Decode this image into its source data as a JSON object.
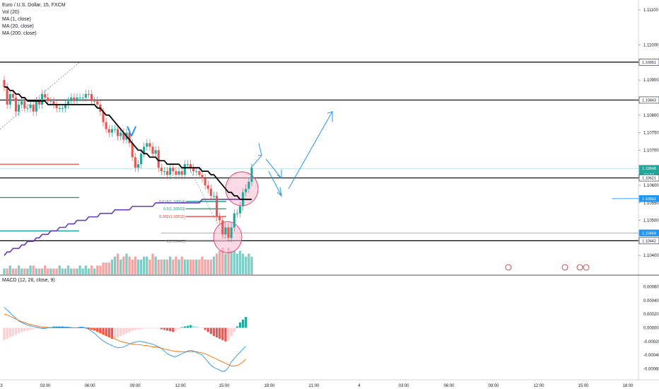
{
  "legend": {
    "symbol": "Euro / U.S. Dollar, 15, FXCM",
    "vol": "Vol (20)",
    "ma1": "MA (1, close)",
    "ma2": "MA (20, close)",
    "ma3": "MA (200, close)",
    "macd": "MACD (12, 26, close, 9)"
  },
  "colors": {
    "bull": "#26a69a",
    "bear": "#ef5350",
    "vol_bull": "#80cbc4",
    "vol_bear": "#f5a3a3",
    "ma20": "#000000",
    "ma200": "#673ab7",
    "annot": "#2196f3",
    "circle_fill": "#f8bbd0",
    "circle_stroke": "#e91e63",
    "fib_green": "#089981",
    "level_red": "#e53935"
  },
  "chart_data": [
    {
      "type": "candlestick",
      "name": "price",
      "y_ticks": [
        "1.11100",
        "1.11000",
        "1.10900",
        "1.10800",
        "1.10750",
        "1.10700",
        "1.10600",
        "1.10550",
        "1.10500",
        "1.10400"
      ],
      "x_ticks": [
        "3",
        "03:00",
        "06:00",
        "09:00",
        "12:00",
        "15:00",
        "18:00",
        "21:00",
        "4",
        "03:00",
        "06:00",
        "09:00",
        "12:00",
        "15:00",
        "18:00"
      ],
      "price_labels": [
        {
          "text": "1.10951",
          "value": 1.10951,
          "style": "black"
        },
        {
          "text": "1.10843",
          "value": 1.10843,
          "style": "black"
        },
        {
          "text": "1.10648",
          "value": 1.10648,
          "style": "teal"
        },
        {
          "text": "04:57",
          "value": 1.1063,
          "style": "teal"
        },
        {
          "text": "1.10621",
          "value": 1.10621,
          "style": "black"
        },
        {
          "text": "1.10562",
          "value": 1.10562,
          "style": "blue"
        },
        {
          "text": "1.10464",
          "value": 1.10464,
          "style": "blue"
        },
        {
          "text": "1.10442",
          "value": 1.10442,
          "style": "black"
        }
      ],
      "horizontal_levels": [
        1.10951,
        1.10843,
        1.10621,
        1.10442
      ],
      "fib_labels": [
        {
          "text": "0.618(1.10554)",
          "value": 1.10554
        },
        {
          "text": "0.5(1.10533)",
          "value": 1.10533
        },
        {
          "text": "0.382(1.10511)",
          "value": 1.10511
        },
        {
          "text": "0(1.10441)",
          "value": 1.10441
        }
      ],
      "close": [
        1.1088,
        1.1083,
        1.1086,
        1.1085,
        1.1081,
        1.1083,
        1.1084,
        1.1082,
        1.1082,
        1.1083,
        1.1081,
        1.1084,
        1.1083,
        1.1086,
        1.1085,
        1.1084,
        1.1084,
        1.1083,
        1.1082,
        1.1082,
        1.1082,
        1.1083,
        1.1084,
        1.1085,
        1.1084,
        1.1085,
        1.1085,
        1.1085,
        1.1086,
        1.1086,
        1.1084,
        1.1084,
        1.1083,
        1.1081,
        1.1078,
        1.1076,
        1.1075,
        1.1076,
        1.1076,
        1.1074,
        1.1075,
        1.1073,
        1.1075,
        1.1072,
        1.1068,
        1.1065,
        1.1066,
        1.1069,
        1.1071,
        1.1072,
        1.1071,
        1.1069,
        1.107,
        1.1065,
        1.1064,
        1.1064,
        1.1063,
        1.1065,
        1.1064,
        1.1063,
        1.1064,
        1.1063,
        1.1066,
        1.1066,
        1.1065,
        1.1064,
        1.1064,
        1.1063,
        1.1062,
        1.106,
        1.1059,
        1.1057,
        1.1057,
        1.1051,
        1.105,
        1.1046,
        1.1048,
        1.1045,
        1.1048,
        1.1052,
        1.1052,
        1.1054,
        1.1058,
        1.1059,
        1.1061,
        1.1065
      ],
      "ma20": [
        1.1088,
        1.1088,
        1.1087,
        1.1087,
        1.1086,
        1.1086,
        1.1085,
        1.1085,
        1.1084,
        1.1084,
        1.1084,
        1.1084,
        1.1084,
        1.1084,
        1.1084,
        1.1083,
        1.1083,
        1.1083,
        1.1083,
        1.1083,
        1.1083,
        1.1083,
        1.1083,
        1.1083,
        1.1083,
        1.1083,
        1.1083,
        1.1083,
        1.1083,
        1.1083,
        1.1083,
        1.1083,
        1.1082,
        1.1082,
        1.1081,
        1.108,
        1.108,
        1.1079,
        1.1078,
        1.1077,
        1.1076,
        1.1075,
        1.1074,
        1.1073,
        1.1072,
        1.1071,
        1.107,
        1.107,
        1.1069,
        1.1069,
        1.1068,
        1.1068,
        1.1068,
        1.1067,
        1.1067,
        1.1067,
        1.1066,
        1.1066,
        1.1066,
        1.1066,
        1.1066,
        1.1065,
        1.1065,
        1.1065,
        1.1065,
        1.1065,
        1.1065,
        1.1065,
        1.1064,
        1.1064,
        1.1064,
        1.1063,
        1.1063,
        1.1062,
        1.1061,
        1.106,
        1.1059,
        1.1058,
        1.1058,
        1.1057,
        1.1057,
        1.1056,
        1.1056,
        1.1056,
        1.1056,
        1.1056
      ],
      "ma200": [
        1.104,
        1.1041,
        1.1041,
        1.1042,
        1.1042,
        1.1042,
        1.1043,
        1.1043,
        1.1044,
        1.1044,
        1.1044,
        1.1045,
        1.1045,
        1.1046,
        1.1046,
        1.1046,
        1.1047,
        1.1047,
        1.1047,
        1.1048,
        1.1048,
        1.1048,
        1.1049,
        1.1049,
        1.1049,
        1.105,
        1.105,
        1.105,
        1.105,
        1.1051,
        1.1051,
        1.1051,
        1.1051,
        1.1052,
        1.1052,
        1.1052,
        1.1052,
        1.1052,
        1.1053,
        1.1053,
        1.1053,
        1.1053,
        1.1053,
        1.1053,
        1.1054,
        1.1054,
        1.1054,
        1.1054,
        1.1054,
        1.1054,
        1.1054,
        1.1054,
        1.1055,
        1.1055,
        1.1055,
        1.1055,
        1.1055,
        1.1055,
        1.1055,
        1.1055,
        1.1055,
        1.1055,
        1.1055,
        1.1055,
        1.1055,
        1.1055,
        1.1055,
        1.1055,
        1.1056,
        1.1056,
        1.1056,
        1.1056,
        1.1056,
        1.1056,
        1.1056,
        1.1056,
        1.1056,
        1.1056,
        1.1056,
        1.1056,
        1.1056,
        1.1056,
        1.1056,
        1.1056,
        1.1056,
        1.1056
      ]
    },
    {
      "type": "bar",
      "name": "volume",
      "values": [
        2,
        2,
        3,
        2,
        2,
        3,
        2,
        2,
        2,
        3,
        3,
        2,
        2,
        2,
        3,
        2,
        2,
        2,
        2,
        3,
        2,
        2,
        3,
        2,
        2,
        2,
        3,
        2,
        3,
        2,
        3,
        2,
        3,
        3,
        4,
        4,
        4,
        5,
        6,
        7,
        5,
        6,
        7,
        6,
        5,
        6,
        5,
        5,
        6,
        6,
        5,
        7,
        6,
        5,
        5,
        5,
        5,
        6,
        5,
        6,
        5,
        6,
        5,
        5,
        5,
        5,
        5,
        5,
        6,
        5,
        5,
        5,
        6,
        7,
        8,
        9,
        7,
        9,
        8,
        8,
        7,
        8,
        7,
        6,
        7,
        6
      ]
    },
    {
      "type": "histogram",
      "name": "macd",
      "y_ticks": [
        "0.00060",
        "0.00040",
        "0.00020",
        "0.00000",
        "-0.00020",
        "-0.00040",
        "-0.00060"
      ],
      "hist": [
        -0.00018,
        -0.00016,
        -0.00014,
        -0.00012,
        -0.0001,
        -8e-05,
        -6e-05,
        -5e-05,
        -4e-05,
        -3e-05,
        -2e-05,
        -1e-05,
        0.0,
        0.0,
        1e-05,
        1e-05,
        1e-05,
        2e-05,
        2e-05,
        2e-05,
        2e-05,
        1e-05,
        1e-05,
        1e-05,
        0.0,
        0.0,
        0.0,
        0.0,
        -1e-05,
        -2e-05,
        -3e-05,
        -4e-05,
        -6e-05,
        -8e-05,
        -0.0001,
        -0.00012,
        -0.00014,
        -0.00016,
        -0.00016,
        -0.00014,
        -0.00012,
        -0.0001,
        -8e-05,
        -6e-05,
        -4e-05,
        -3e-05,
        -2e-05,
        -2e-05,
        -1e-05,
        -1e-05,
        -1e-05,
        -1e-05,
        -1e-05,
        -1e-05,
        -2e-05,
        -3e-05,
        -4e-05,
        -5e-05,
        -6e-05,
        -4e-05,
        -2e-05,
        1e-05,
        2e-05,
        3e-05,
        4e-05,
        3e-05,
        2e-05,
        1e-05,
        0.0,
        -3e-05,
        -6e-05,
        -9e-05,
        -0.00012,
        -0.00014,
        -0.00016,
        -0.00018,
        -0.0002,
        -0.00018,
        -0.00012,
        -6e-05,
        2e-05,
        8e-05,
        0.00012,
        0.00016
      ],
      "macd": [
        0.0003,
        0.00026,
        0.00022,
        0.00018,
        0.00014,
        0.0001,
        8e-05,
        6e-05,
        4e-05,
        3e-05,
        2e-05,
        1e-05,
        0.0,
        -1e-05,
        -1e-05,
        0.0,
        0.0,
        0.0,
        1e-05,
        1e-05,
        1e-05,
        1e-05,
        1e-05,
        0.0,
        0.0,
        0.0,
        1e-05,
        1e-05,
        0.0,
        -2e-05,
        -5e-05,
        -8e-05,
        -0.00012,
        -0.00016,
        -0.00019,
        -0.00022,
        -0.00024,
        -0.00026,
        -0.00028,
        -0.00029,
        -0.00029,
        -0.00028,
        -0.00026,
        -0.00024,
        -0.00022,
        -0.00021,
        -0.0002,
        -0.0002,
        -0.00021,
        -0.00022,
        -0.00023,
        -0.00024,
        -0.00026,
        -0.00028,
        -0.0003,
        -0.00034,
        -0.00038,
        -0.0004,
        -0.00042,
        -0.00042,
        -0.0004,
        -0.00038,
        -0.00036,
        -0.00034,
        -0.00033,
        -0.00034,
        -0.00036,
        -0.00038,
        -0.0004,
        -0.00045,
        -0.0005,
        -0.00055,
        -0.00058,
        -0.0006,
        -0.00062,
        -0.00064,
        -0.00063,
        -0.00058,
        -0.0005,
        -0.00045,
        -0.0004,
        -0.00036,
        -0.00031,
        -0.00027
      ],
      "signal": [
        0.0002,
        0.00019,
        0.00017,
        0.00015,
        0.00013,
        0.00011,
        9e-05,
        8e-05,
        6e-05,
        5e-05,
        4e-05,
        3e-05,
        2e-05,
        1e-05,
        1e-05,
        0.0,
        0.0,
        0.0,
        0.0,
        0.0,
        0.0,
        0.0,
        0.0,
        0.0,
        0.0,
        0.0,
        0.0,
        0.0,
        0.0,
        0.0,
        -1e-05,
        -2e-05,
        -4e-05,
        -6e-05,
        -8e-05,
        -0.0001,
        -0.00012,
        -0.00014,
        -0.00016,
        -0.00018,
        -0.0002,
        -0.00021,
        -0.00022,
        -0.00023,
        -0.00024,
        -0.00024,
        -0.00025,
        -0.00025,
        -0.00026,
        -0.00026,
        -0.00027,
        -0.00028,
        -0.00028,
        -0.00029,
        -0.0003,
        -0.00031,
        -0.00032,
        -0.00033,
        -0.00034,
        -0.00034,
        -0.00035,
        -0.00035,
        -0.00035,
        -0.00035,
        -0.00035,
        -0.00035,
        -0.00035,
        -0.00036,
        -0.00037,
        -0.00038,
        -0.0004,
        -0.00042,
        -0.00044,
        -0.00046,
        -0.00048,
        -0.0005,
        -0.00052,
        -0.00054,
        -0.00056,
        -0.00056,
        -0.00055,
        -0.00053,
        -0.0005,
        -0.00046
      ]
    }
  ]
}
